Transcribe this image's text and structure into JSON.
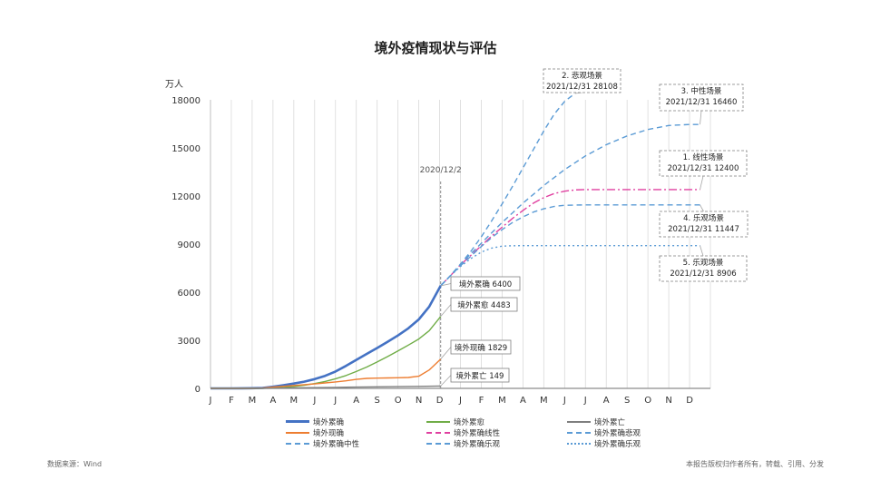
{
  "chart_data": {
    "type": "line",
    "title": "境外疫情现状与评估",
    "y_unit": "万人",
    "ylim": [
      0,
      18000
    ],
    "y_ticks": [
      0,
      3000,
      6000,
      9000,
      12000,
      15000,
      18000
    ],
    "x_tick_labels": [
      "J",
      "F",
      "M",
      "A",
      "M",
      "J",
      "J",
      "A",
      "S",
      "O",
      "N",
      "D",
      "J",
      "F",
      "M",
      "A",
      "M",
      "J",
      "J",
      "A",
      "S",
      "O",
      "N",
      "D"
    ],
    "x_range_months": [
      0,
      24
    ],
    "grid": "vertical",
    "marker": {
      "x_month": 11.05,
      "label": "2020/12/2"
    },
    "colors": {
      "confirmed": "#4472c4",
      "recovered": "#70ad47",
      "active": "#ed7d31",
      "deaths": "#7f7f7f",
      "linear": "#e040a0",
      "pessimistic": "#5b9bd5",
      "neutral": "#5b9bd5",
      "optimistic": "#5b9bd5"
    },
    "series": [
      {
        "name": "境外累确",
        "style": "solid-thick",
        "color_key": "confirmed",
        "x": [
          0.0,
          0.5,
          1.0,
          1.5,
          2.0,
          2.5,
          3.0,
          3.5,
          4.0,
          4.5,
          5.0,
          5.5,
          6.0,
          6.5,
          7.0,
          7.5,
          8.0,
          8.5,
          9.0,
          9.5,
          10.0,
          10.5,
          11.05
        ],
        "y": [
          0,
          0,
          2,
          5,
          10,
          30,
          100,
          200,
          300,
          420,
          580,
          780,
          1050,
          1400,
          1780,
          2150,
          2520,
          2900,
          3300,
          3750,
          4300,
          5100,
          6400
        ]
      },
      {
        "name": "境外累愈",
        "style": "solid",
        "color_key": "recovered",
        "x": [
          0.0,
          1.0,
          2.0,
          2.5,
          3.0,
          3.5,
          4.0,
          4.5,
          5.0,
          5.5,
          6.0,
          6.5,
          7.0,
          7.5,
          8.0,
          8.5,
          9.0,
          9.5,
          10.0,
          10.5,
          11.05
        ],
        "y": [
          0,
          0,
          0,
          5,
          20,
          60,
          120,
          200,
          300,
          430,
          600,
          800,
          1050,
          1330,
          1650,
          1980,
          2330,
          2700,
          3080,
          3600,
          4483
        ]
      },
      {
        "name": "境外现确",
        "style": "solid",
        "color_key": "active",
        "x": [
          0.0,
          1.0,
          2.0,
          2.5,
          3.0,
          3.5,
          4.0,
          4.5,
          5.0,
          5.5,
          6.0,
          6.5,
          7.0,
          7.5,
          8.0,
          8.5,
          9.0,
          9.5,
          10.0,
          10.5,
          11.05
        ],
        "y": [
          0,
          0,
          0,
          20,
          80,
          130,
          180,
          230,
          280,
          340,
          400,
          470,
          560,
          620,
          640,
          650,
          660,
          680,
          760,
          1150,
          1829
        ]
      },
      {
        "name": "境外累亡",
        "style": "solid",
        "color_key": "deaths",
        "x": [
          0.0,
          2.0,
          3.0,
          4.0,
          5.0,
          6.0,
          7.0,
          8.0,
          9.0,
          10.0,
          11.05
        ],
        "y": [
          0,
          0,
          10,
          30,
          45,
          60,
          80,
          95,
          110,
          125,
          149
        ]
      },
      {
        "name": "境外累确线性",
        "style": "dash-dot",
        "color_key": "linear",
        "x": [
          11.05,
          11.5,
          12.0,
          12.5,
          13.0,
          13.5,
          14.0,
          14.5,
          15.0,
          15.5,
          16.0,
          16.5,
          17.0,
          17.5,
          18.0,
          20.0,
          23.5
        ],
        "y": [
          6400,
          7000,
          7700,
          8300,
          8900,
          9500,
          10050,
          10600,
          11100,
          11550,
          11900,
          12150,
          12300,
          12380,
          12400,
          12400,
          12400
        ]
      },
      {
        "name": "境外累确悲观",
        "style": "dashed",
        "color_key": "pessimistic",
        "x": [
          11.05,
          11.5,
          12.0,
          12.5,
          13.0,
          13.5,
          14.0,
          14.5,
          15.0,
          15.5,
          16.0,
          16.5,
          17.0,
          17.5
        ],
        "y": [
          6400,
          7000,
          7750,
          8550,
          9450,
          10450,
          11500,
          12600,
          13750,
          14900,
          16050,
          17100,
          17900,
          18400
        ]
      },
      {
        "name": "境外累确中性",
        "style": "dashed",
        "color_key": "neutral",
        "x": [
          11.05,
          11.5,
          12.0,
          12.5,
          13.0,
          13.5,
          14.0,
          14.5,
          15.0,
          15.5,
          16.0,
          17.0,
          18.0,
          19.0,
          20.0,
          21.0,
          22.0,
          23.0,
          23.5
        ],
        "y": [
          6400,
          7000,
          7750,
          8400,
          9050,
          9700,
          10350,
          10950,
          11550,
          12100,
          12650,
          13650,
          14500,
          15200,
          15750,
          16150,
          16400,
          16460,
          16460
        ]
      },
      {
        "name": "境外累确乐观",
        "style": "dashed",
        "color_key": "optimistic",
        "x": [
          11.05,
          11.5,
          12.0,
          12.5,
          13.0,
          13.5,
          14.0,
          14.5,
          15.0,
          15.5,
          16.0,
          16.5,
          17.0,
          18.0,
          20.0,
          23.5
        ],
        "y": [
          6400,
          7000,
          7650,
          8250,
          8850,
          9400,
          9900,
          10350,
          10700,
          11000,
          11200,
          11350,
          11420,
          11447,
          11447,
          11447
        ]
      },
      {
        "name": "境外累确乐观2",
        "style": "dotted",
        "color_key": "optimistic",
        "x": [
          11.05,
          11.5,
          12.0,
          12.5,
          13.0,
          13.5,
          14.0,
          14.5,
          15.0,
          16.0,
          18.0,
          23.5
        ],
        "y": [
          6400,
          7000,
          7600,
          8100,
          8500,
          8750,
          8870,
          8900,
          8906,
          8906,
          8906,
          8906
        ]
      }
    ],
    "annotations": [
      {
        "id": "a1",
        "text": [
          "境外累确  6400"
        ],
        "point": [
          11.05,
          6400
        ]
      },
      {
        "id": "a2",
        "text": [
          "境外累愈  4483"
        ],
        "point": [
          11.05,
          4483
        ]
      },
      {
        "id": "a3",
        "text": [
          "境外现确  1829"
        ],
        "point": [
          11.05,
          1829
        ]
      },
      {
        "id": "a4",
        "text": [
          "境外累亡  149"
        ],
        "point": [
          11.05,
          149
        ]
      },
      {
        "id": "b2",
        "text": [
          "2. 悲观场景",
          "2021/12/31  28108"
        ],
        "point": [
          17.5,
          18400
        ]
      },
      {
        "id": "b3",
        "text": [
          "3. 中性场景",
          "2021/12/31  16460"
        ],
        "point": [
          23.5,
          16460
        ]
      },
      {
        "id": "b1",
        "text": [
          "1. 线性场景",
          "2021/12/31  12400"
        ],
        "point": [
          23.5,
          12400
        ]
      },
      {
        "id": "b4",
        "text": [
          "4. 乐观场景",
          "2021/12/31  11447"
        ],
        "point": [
          23.5,
          11447
        ]
      },
      {
        "id": "b5",
        "text": [
          "5. 乐观场景",
          "2021/12/31  8906"
        ],
        "point": [
          23.5,
          8906
        ]
      }
    ]
  },
  "legend": [
    {
      "label": "境外累确",
      "color_key": "confirmed",
      "style": "solid-thick"
    },
    {
      "label": "境外累愈",
      "color_key": "recovered",
      "style": "solid"
    },
    {
      "label": "境外累亡",
      "color_key": "deaths",
      "style": "solid"
    },
    {
      "label": "境外现确",
      "color_key": "active",
      "style": "solid"
    },
    {
      "label": "境外累确线性",
      "color_key": "linear",
      "style": "dash-dot"
    },
    {
      "label": "境外累确悲观",
      "color_key": "pessimistic",
      "style": "dashed"
    },
    {
      "label": "境外累确中性",
      "color_key": "neutral",
      "style": "dashed"
    },
    {
      "label": "境外累确乐观",
      "color_key": "optimistic",
      "style": "dashed"
    },
    {
      "label": "境外累确乐观",
      "color_key": "optimistic",
      "style": "dotted"
    }
  ],
  "footer": {
    "source": "数据来源：Wind",
    "disclaimer": "本报告版权归作者所有，转载、引用、分发"
  }
}
